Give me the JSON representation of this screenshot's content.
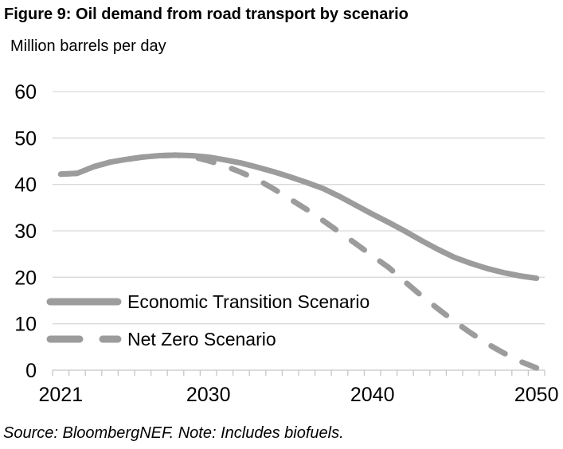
{
  "figure": {
    "source_note": "Source: BloombergNEF. Note: Includes biofuels."
  },
  "chart_data": {
    "type": "line",
    "title": "Figure 9: Oil demand from road transport by scenario",
    "ylabel": "Million barrels per day",
    "xlabel": "",
    "x": [
      2021,
      2022,
      2023,
      2024,
      2025,
      2026,
      2027,
      2028,
      2029,
      2030,
      2031,
      2032,
      2033,
      2034,
      2035,
      2036,
      2037,
      2038,
      2039,
      2040,
      2041,
      2042,
      2043,
      2044,
      2045,
      2046,
      2047,
      2048,
      2049,
      2050
    ],
    "series": [
      {
        "name": "Economic Transition Scenario",
        "style": "solid",
        "values": [
          42.2,
          42.4,
          43.8,
          44.8,
          45.4,
          45.9,
          46.2,
          46.3,
          46.2,
          45.9,
          45.3,
          44.6,
          43.7,
          42.7,
          41.6,
          40.4,
          39.1,
          37.4,
          35.5,
          33.6,
          31.8,
          29.9,
          27.9,
          26.0,
          24.3,
          23.0,
          21.9,
          21.0,
          20.3,
          19.8
        ]
      },
      {
        "name": "Net Zero Scenario",
        "style": "dashed",
        "values": [
          42.2,
          42.4,
          43.8,
          44.8,
          45.4,
          45.9,
          46.2,
          46.3,
          46.0,
          45.1,
          44.0,
          42.6,
          41.0,
          39.0,
          36.8,
          34.6,
          32.2,
          29.7,
          27.2,
          24.6,
          22.1,
          19.0,
          16.0,
          13.2,
          10.5,
          8.0,
          5.7,
          3.7,
          1.9,
          0.5
        ]
      }
    ],
    "ylim": [
      0,
      60
    ],
    "yticks": [
      0,
      10,
      20,
      30,
      40,
      50,
      60
    ],
    "xticks": [
      2021,
      2030,
      2040,
      2050
    ],
    "grid": true,
    "legend_position": "inside-bottom-left",
    "colors": {
      "line": "#9c9c9c",
      "grid": "#d9d9d9",
      "axis": "#c6c6c6",
      "text": "#000000",
      "background": "#ffffff"
    }
  }
}
